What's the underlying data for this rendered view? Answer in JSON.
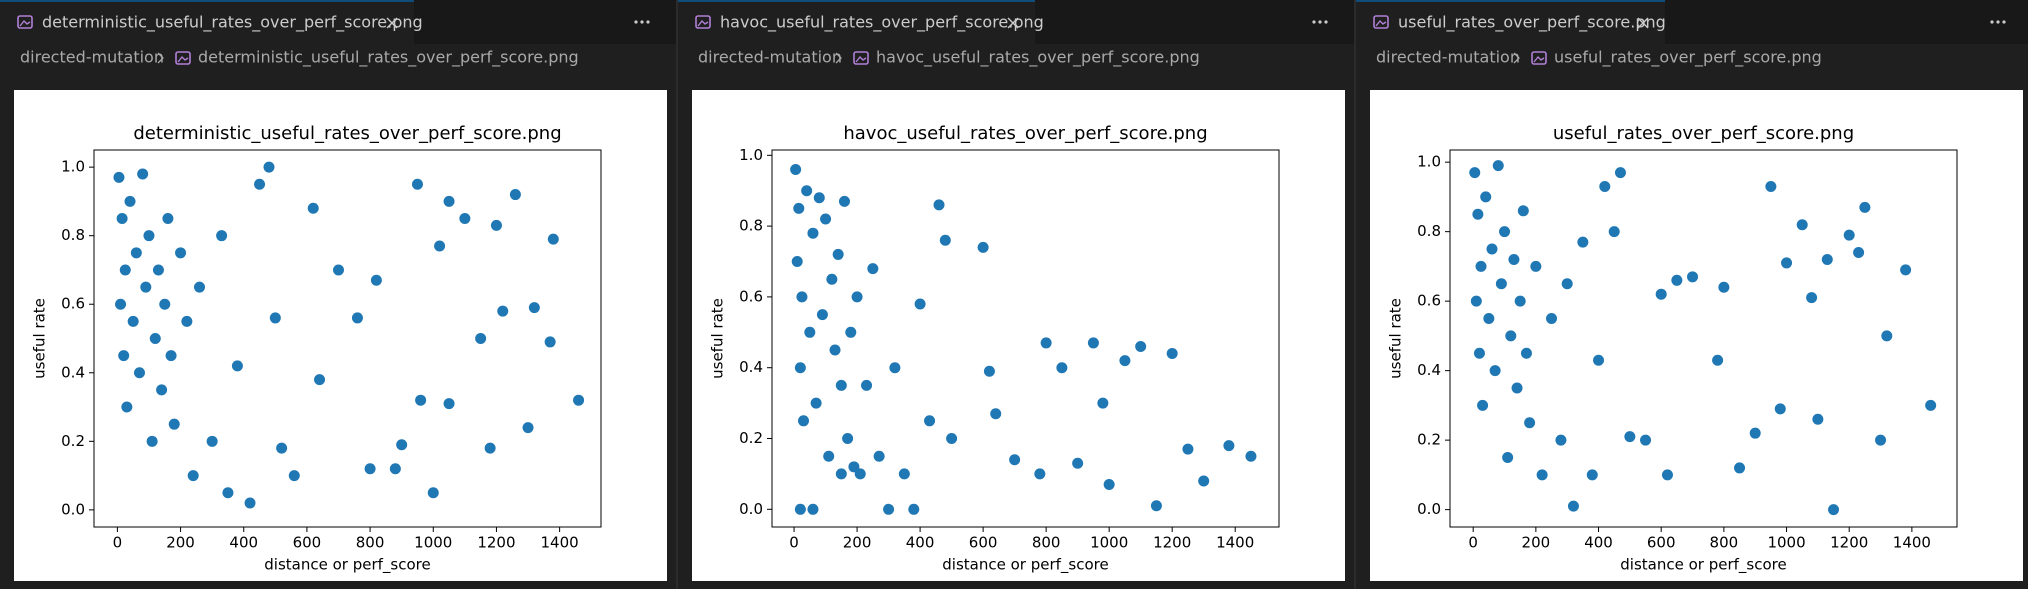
{
  "panes": [
    {
      "tab": "deterministic_useful_rates_over_perf_score.png",
      "breadcrumb": [
        "directed-mutation",
        "deterministic_useful_rates_over_perf_score.png"
      ]
    },
    {
      "tab": "havoc_useful_rates_over_perf_score.png",
      "breadcrumb": [
        "directed-mutation",
        "havoc_useful_rates_over_perf_score.png"
      ]
    },
    {
      "tab": "useful_rates_over_perf_score.png",
      "breadcrumb": [
        "directed-mutation",
        "useful_rates_over_perf_score.png"
      ]
    }
  ],
  "chart_data": [
    {
      "type": "scatter",
      "title": "deterministic_useful_rates_over_perf_score.png",
      "x_label": "distance or perf_score",
      "y_label": "useful rate",
      "color": "#1f77b4",
      "xlim": [
        -74,
        1531
      ],
      "ylim": [
        -0.05,
        1.05
      ],
      "xticks": [
        0,
        200,
        400,
        600,
        800,
        1000,
        1200,
        1400
      ],
      "yticks": [
        {
          "value": 0,
          "label": "0.0"
        },
        0.2,
        0.4,
        0.6,
        0.8,
        {
          "value": 1,
          "label": "1.0"
        }
      ],
      "x": [
        5,
        10,
        15,
        20,
        25,
        30,
        40,
        50,
        60,
        70,
        80,
        90,
        100,
        110,
        120,
        130,
        140,
        150,
        160,
        170,
        180,
        200,
        220,
        240,
        260,
        300,
        330,
        350,
        380,
        420,
        450,
        480,
        500,
        520,
        560,
        620,
        640,
        700,
        760,
        800,
        820,
        880,
        900,
        950,
        960,
        1000,
        1020,
        1050,
        1050,
        1100,
        1150,
        1180,
        1200,
        1220,
        1260,
        1300,
        1320,
        1370,
        1380,
        1460
      ],
      "y": [
        0.97,
        0.6,
        0.85,
        0.45,
        0.7,
        0.3,
        0.9,
        0.55,
        0.75,
        0.4,
        0.98,
        0.65,
        0.8,
        0.2,
        0.5,
        0.7,
        0.35,
        0.6,
        0.85,
        0.45,
        0.25,
        0.75,
        0.55,
        0.1,
        0.65,
        0.2,
        0.8,
        0.05,
        0.42,
        0.02,
        0.95,
        1.0,
        0.56,
        0.18,
        0.1,
        0.88,
        0.38,
        0.7,
        0.56,
        0.12,
        0.67,
        0.12,
        0.19,
        0.95,
        0.32,
        0.05,
        0.77,
        0.9,
        0.31,
        0.85,
        0.5,
        0.18,
        0.83,
        0.58,
        0.92,
        0.24,
        0.59,
        0.49,
        0.79,
        0.32
      ]
    },
    {
      "type": "scatter",
      "title": "havoc_useful_rates_over_perf_score.png",
      "x_label": "distance or perf_score",
      "y_label": "useful rate",
      "color": "#1f77b4",
      "xlim": [
        -70,
        1539
      ],
      "ylim": [
        -0.05,
        1.015
      ],
      "xticks": [
        0,
        200,
        400,
        600,
        800,
        1000,
        1200,
        1400
      ],
      "yticks": [
        {
          "value": 0,
          "label": "0.0"
        },
        0.2,
        0.4,
        0.6,
        0.8,
        {
          "value": 1,
          "label": "1.0"
        }
      ],
      "x": [
        5,
        10,
        15,
        20,
        25,
        30,
        40,
        50,
        60,
        70,
        80,
        90,
        100,
        110,
        120,
        130,
        140,
        150,
        160,
        170,
        180,
        190,
        200,
        210,
        230,
        250,
        270,
        300,
        320,
        350,
        380,
        400,
        430,
        460,
        480,
        500,
        600,
        620,
        640,
        700,
        780,
        800,
        850,
        900,
        950,
        980,
        1000,
        1050,
        1100,
        1150,
        1200,
        1250,
        1300,
        1380,
        1450,
        20,
        60,
        150
      ],
      "y": [
        0.96,
        0.7,
        0.85,
        0.4,
        0.6,
        0.25,
        0.9,
        0.5,
        0.78,
        0.3,
        0.88,
        0.55,
        0.82,
        0.15,
        0.65,
        0.45,
        0.72,
        0.35,
        0.87,
        0.2,
        0.5,
        0.12,
        0.6,
        0.1,
        0.35,
        0.68,
        0.15,
        0.0,
        0.4,
        0.1,
        0.0,
        0.58,
        0.25,
        0.86,
        0.76,
        0.2,
        0.74,
        0.39,
        0.27,
        0.14,
        0.1,
        0.47,
        0.4,
        0.13,
        0.47,
        0.3,
        0.07,
        0.42,
        0.46,
        0.01,
        0.44,
        0.17,
        0.08,
        0.18,
        0.15,
        0.0,
        0.0,
        0.1
      ]
    },
    {
      "type": "scatter",
      "title": "useful_rates_over_perf_score.png",
      "x_label": "distance or perf_score",
      "y_label": "useful rate",
      "color": "#1f77b4",
      "xlim": [
        -74,
        1544
      ],
      "ylim": [
        -0.05,
        1.035
      ],
      "xticks": [
        0,
        200,
        400,
        600,
        800,
        1000,
        1200,
        1400
      ],
      "yticks": [
        {
          "value": 0,
          "label": "0.0"
        },
        0.2,
        0.4,
        0.6,
        0.8,
        {
          "value": 1,
          "label": "1.0"
        }
      ],
      "x": [
        5,
        10,
        15,
        20,
        25,
        30,
        40,
        50,
        60,
        70,
        80,
        90,
        100,
        110,
        120,
        130,
        140,
        150,
        160,
        170,
        180,
        200,
        220,
        250,
        280,
        300,
        320,
        350,
        380,
        400,
        420,
        450,
        470,
        500,
        550,
        600,
        620,
        650,
        700,
        780,
        800,
        850,
        900,
        950,
        980,
        1000,
        1050,
        1080,
        1100,
        1130,
        1150,
        1200,
        1230,
        1250,
        1300,
        1320,
        1380,
        1460
      ],
      "y": [
        0.97,
        0.6,
        0.85,
        0.45,
        0.7,
        0.3,
        0.9,
        0.55,
        0.75,
        0.4,
        0.99,
        0.65,
        0.8,
        0.15,
        0.5,
        0.72,
        0.35,
        0.6,
        0.86,
        0.45,
        0.25,
        0.7,
        0.1,
        0.55,
        0.2,
        0.65,
        0.01,
        0.77,
        0.1,
        0.43,
        0.93,
        0.8,
        0.97,
        0.21,
        0.2,
        0.62,
        0.1,
        0.66,
        0.67,
        0.43,
        0.64,
        0.12,
        0.22,
        0.93,
        0.29,
        0.71,
        0.82,
        0.61,
        0.26,
        0.72,
        0.0,
        0.79,
        0.74,
        0.87,
        0.2,
        0.5,
        0.69,
        0.3
      ]
    }
  ]
}
